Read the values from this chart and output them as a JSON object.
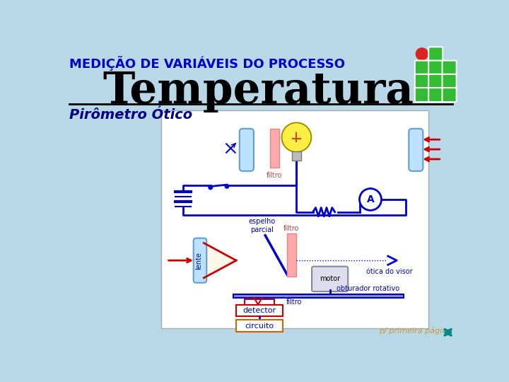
{
  "bg_color": "#b8d8e8",
  "title_top": "MEDIÇÃO DE VARIÁVEIS DO PROCESSO",
  "title_top_color": "#0000cc",
  "title_main": "Temperatura",
  "title_main_color": "#000000",
  "subtitle": "Pirômetro Ótico",
  "subtitle_color": "#000080",
  "footer_text": "p/ primeira página",
  "footer_color": "#cc9933",
  "diagram_bg": "#ffffff",
  "blue_color": "#0000cc",
  "red_color": "#cc0000",
  "light_red": "#ffaaaa",
  "orange": "#cc6600",
  "green": "#33bb33",
  "teal": "#008888",
  "red_circle": "#dd2222",
  "lens_fill": "#aaddff",
  "lens_edge": "#4488cc"
}
